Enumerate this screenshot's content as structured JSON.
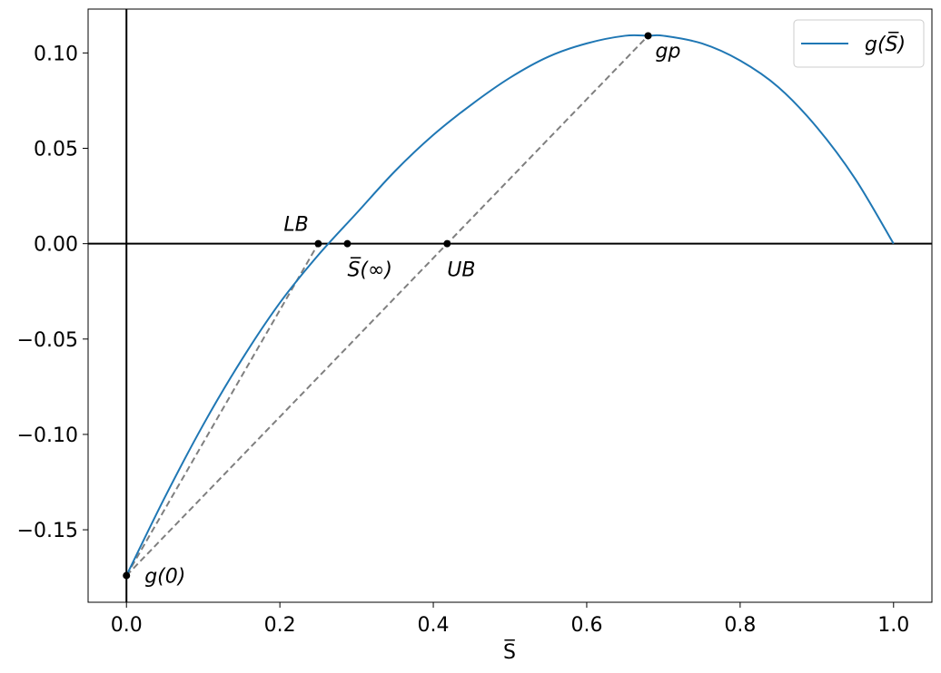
{
  "chart_data": {
    "type": "line",
    "title": "",
    "xlabel": "S̅",
    "ylabel": "",
    "xlim": [
      -0.05,
      1.05
    ],
    "ylim": [
      -0.188,
      0.123
    ],
    "x_ticks": [
      0.0,
      0.2,
      0.4,
      0.6,
      0.8,
      1.0
    ],
    "x_tick_labels": [
      "0.0",
      "0.2",
      "0.4",
      "0.6",
      "0.8",
      "1.0"
    ],
    "y_ticks": [
      0.1,
      0.05,
      0.0,
      -0.05,
      -0.1,
      -0.15
    ],
    "y_tick_labels": [
      "0.10",
      "0.05",
      "0.00",
      "−0.05",
      "−0.10",
      "−0.15"
    ],
    "grid": false,
    "legend_position": "top-right",
    "series": [
      {
        "name": "g(S̅)",
        "color": "#1f77b4",
        "x": [
          0.0,
          0.05,
          0.1,
          0.15,
          0.2,
          0.25,
          0.3,
          0.35,
          0.4,
          0.45,
          0.5,
          0.55,
          0.6,
          0.65,
          0.68,
          0.7,
          0.75,
          0.8,
          0.85,
          0.9,
          0.95,
          1.0
        ],
        "y": [
          -0.174,
          -0.133,
          -0.095,
          -0.061,
          -0.031,
          -0.006,
          0.016,
          0.038,
          0.057,
          0.073,
          0.087,
          0.098,
          0.105,
          0.109,
          0.109,
          0.109,
          0.105,
          0.096,
          0.082,
          0.061,
          0.034,
          0.0
        ]
      }
    ],
    "reference_lines": [
      {
        "orientation": "horizontal",
        "value": 0.0,
        "color": "#000000"
      },
      {
        "orientation": "vertical",
        "value": 0.0,
        "color": "#000000"
      }
    ],
    "dashed_segments": [
      {
        "from": [
          0.0,
          -0.174
        ],
        "to": [
          0.25,
          0.0
        ],
        "color": "#7f7f7f"
      },
      {
        "from": [
          0.0,
          -0.174
        ],
        "to": [
          0.68,
          0.109
        ],
        "color": "#7f7f7f"
      }
    ],
    "points": [
      {
        "x": 0.0,
        "y": -0.174,
        "label": "g(0)",
        "anchor": "right"
      },
      {
        "x": 0.25,
        "y": 0.0,
        "label": "LB",
        "anchor": "above-left"
      },
      {
        "x": 0.288,
        "y": 0.0,
        "label": "S̅(∞)",
        "anchor": "below"
      },
      {
        "x": 0.418,
        "y": 0.0,
        "label": "UB",
        "anchor": "below"
      },
      {
        "x": 0.68,
        "y": 0.109,
        "label": "gp",
        "anchor": "below-right"
      }
    ]
  }
}
